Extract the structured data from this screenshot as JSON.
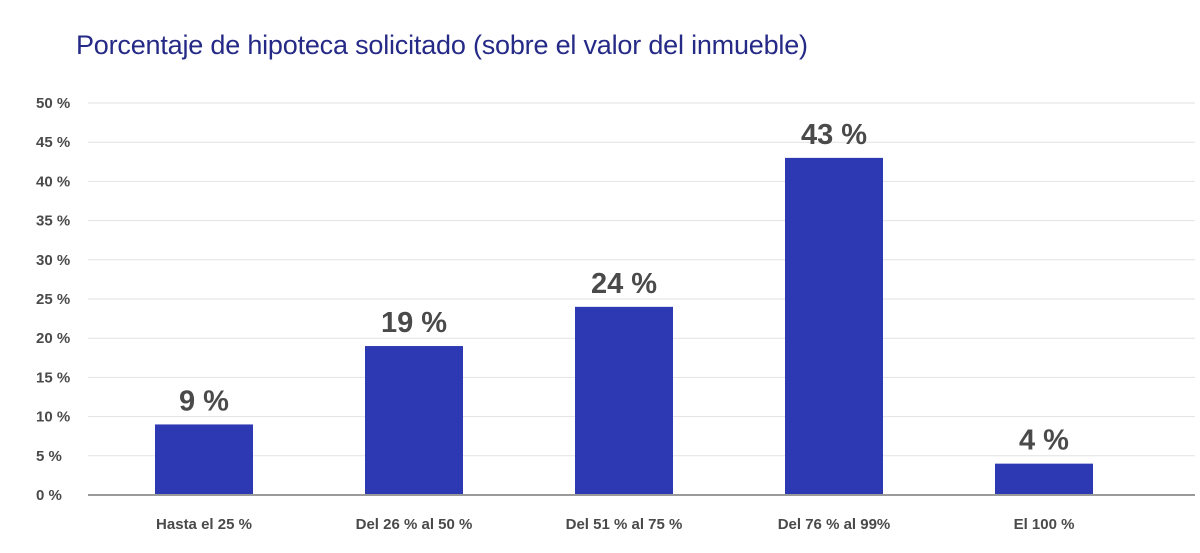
{
  "chart_data": {
    "type": "bar",
    "title": "Porcentaje de hipoteca solicitado (sobre el valor del inmueble)",
    "categories": [
      "Hasta el 25 %",
      "Del 26 % al 50 %",
      "Del 51 % al 75 %",
      "Del 76 % al 99%",
      "El 100 %"
    ],
    "values": [
      9,
      19,
      24,
      43,
      4
    ],
    "data_labels": [
      "9 %",
      "19 %",
      "24 %",
      "43 %",
      "4 %"
    ],
    "y_ticks": [
      0,
      5,
      10,
      15,
      20,
      25,
      30,
      35,
      40,
      45,
      50
    ],
    "y_tick_labels": [
      "0 %",
      "5 %",
      "10 %",
      "15 %",
      "20 %",
      "25 %",
      "30 %",
      "35 %",
      "40 %",
      "45 %",
      "50 %"
    ],
    "ylim": [
      0,
      50
    ],
    "xlabel": "",
    "ylabel": "",
    "grid": true,
    "legend": "none",
    "colors": {
      "bar": "#2d38b3",
      "title": "#252a86",
      "grid": "#e2e2e2",
      "axis": "#9a9a9a",
      "text": "#4a4a4a"
    }
  }
}
